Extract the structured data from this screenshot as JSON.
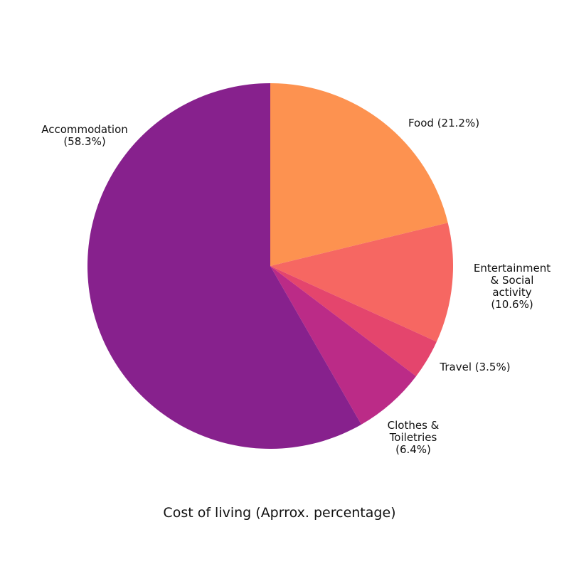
{
  "chart_data": {
    "type": "pie",
    "title": "",
    "caption": "Cost of living (Aprrox. percentage)",
    "start": "top",
    "direction": "clockwise",
    "slices": [
      {
        "name": "Food",
        "value": 21.2,
        "color": "#fd9250",
        "label_lines": [
          "Food (21.2%)"
        ]
      },
      {
        "name": "Entertainment & Social activity",
        "value": 10.6,
        "color": "#f66762",
        "label_lines": [
          "Entertainment",
          "& Social",
          "activity",
          "(10.6%)"
        ]
      },
      {
        "name": "Travel",
        "value": 3.5,
        "color": "#e4456d",
        "label_lines": [
          "Travel (3.5%)"
        ]
      },
      {
        "name": "Clothes & Toiletries",
        "value": 6.4,
        "color": "#bb2b87",
        "label_lines": [
          "Clothes &",
          "Toiletries",
          "(6.4%)"
        ]
      },
      {
        "name": "Accommodation",
        "value": 58.3,
        "color": "#87218d",
        "label_lines": [
          "Accommodation",
          "(58.3%)"
        ]
      }
    ]
  }
}
